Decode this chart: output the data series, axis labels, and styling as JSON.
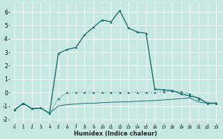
{
  "bg_color": "#c5e8e3",
  "grid_color": "#ffffff",
  "line_color": "#1a6b6b",
  "xlim": [
    -0.5,
    23.5
  ],
  "ylim": [
    -2.3,
    6.7
  ],
  "xticks": [
    0,
    1,
    2,
    3,
    4,
    5,
    6,
    7,
    8,
    9,
    10,
    11,
    12,
    13,
    14,
    15,
    16,
    17,
    18,
    19,
    20,
    21,
    22,
    23
  ],
  "yticks": [
    -2,
    -1,
    0,
    1,
    2,
    3,
    4,
    5,
    6
  ],
  "xlabel": "Humidex (Indice chaleur)",
  "curve_main_x": [
    0,
    1,
    2,
    3,
    4,
    5,
    6,
    7,
    8,
    9,
    10,
    11,
    12,
    13,
    14,
    15,
    16,
    17,
    18,
    19,
    20,
    21,
    22,
    23
  ],
  "curve_main_y": [
    -1.3,
    -0.8,
    -1.2,
    -1.15,
    -1.55,
    2.9,
    3.2,
    3.35,
    4.3,
    4.85,
    5.4,
    5.25,
    6.1,
    4.8,
    4.5,
    4.4,
    0.25,
    0.2,
    0.15,
    -0.1,
    -0.25,
    -0.4,
    -0.8,
    -0.8
  ],
  "curve_mid_x": [
    0,
    1,
    2,
    3,
    4,
    5,
    6,
    7,
    8,
    9,
    10,
    11,
    12,
    13,
    14,
    15,
    16,
    17,
    18,
    19,
    20,
    21,
    22,
    23
  ],
  "curve_mid_y": [
    -1.3,
    -0.8,
    -1.2,
    -1.15,
    -1.55,
    -0.45,
    0.0,
    0.0,
    0.0,
    0.0,
    0.0,
    0.0,
    0.0,
    0.0,
    0.0,
    0.0,
    0.0,
    0.05,
    0.1,
    0.05,
    -0.1,
    -0.5,
    -0.75,
    -0.75
  ],
  "curve_low_x": [
    0,
    1,
    2,
    3,
    4,
    5,
    6,
    7,
    8,
    9,
    10,
    11,
    12,
    13,
    14,
    15,
    16,
    17,
    18,
    19,
    20,
    21,
    22,
    23
  ],
  "curve_low_y": [
    -1.3,
    -0.8,
    -1.2,
    -1.15,
    -1.55,
    -1.0,
    -0.9,
    -0.85,
    -0.8,
    -0.8,
    -0.75,
    -0.72,
    -0.7,
    -0.68,
    -0.65,
    -0.62,
    -0.6,
    -0.55,
    -0.5,
    -0.45,
    -0.4,
    -0.7,
    -0.8,
    -0.8
  ]
}
